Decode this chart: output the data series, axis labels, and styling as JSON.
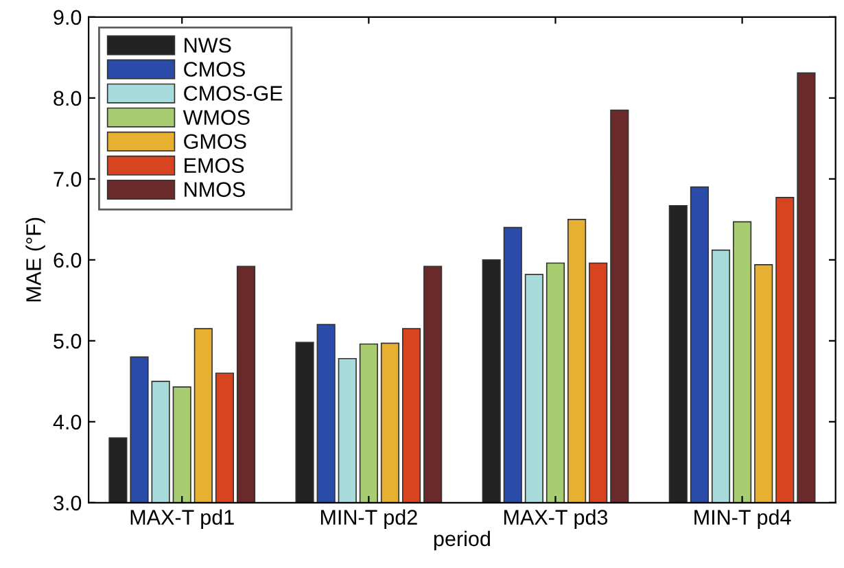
{
  "chart_data": {
    "type": "bar",
    "xlabel": "period",
    "ylabel": "MAE (°F)",
    "categories": [
      "MAX-T pd1",
      "MIN-T pd2",
      "MAX-T pd3",
      "MIN-T pd4"
    ],
    "series": [
      {
        "name": "NWS",
        "color": "#222222",
        "values": [
          3.8,
          4.98,
          6.0,
          6.67
        ]
      },
      {
        "name": "CMOS",
        "color": "#2a4ca8",
        "values": [
          4.8,
          5.2,
          6.4,
          6.9
        ]
      },
      {
        "name": "CMOS-GE",
        "color": "#a8dcdc",
        "values": [
          4.5,
          4.78,
          5.82,
          6.12
        ]
      },
      {
        "name": "WMOS",
        "color": "#a8cc70",
        "values": [
          4.43,
          4.96,
          5.96,
          6.47
        ]
      },
      {
        "name": "GMOS",
        "color": "#e8b030",
        "values": [
          5.15,
          4.97,
          6.5,
          5.94
        ]
      },
      {
        "name": "EMOS",
        "color": "#d84420",
        "values": [
          4.6,
          5.15,
          5.96,
          6.77
        ]
      },
      {
        "name": "NMOS",
        "color": "#6a2a2a",
        "values": [
          5.92,
          5.92,
          7.85,
          8.31
        ]
      }
    ],
    "ylim": [
      3.0,
      9.0
    ],
    "yticks": [
      {
        "value": 3,
        "label": "3.0"
      },
      {
        "value": 4,
        "label": "4.0"
      },
      {
        "value": 5,
        "label": "5.0"
      },
      {
        "value": 6,
        "label": "6.0"
      },
      {
        "value": 7,
        "label": "7.0"
      },
      {
        "value": 8,
        "label": "8.0"
      },
      {
        "value": 9,
        "label": "9.0"
      }
    ],
    "legend": "top left",
    "grid": false
  }
}
